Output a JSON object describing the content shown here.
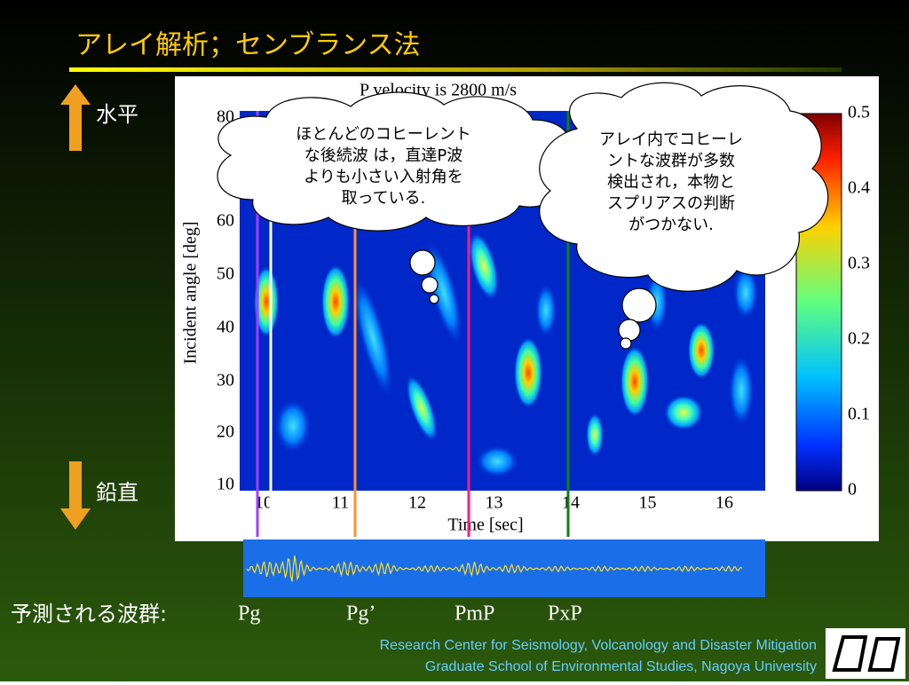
{
  "title": "アレイ解析；センブランス法",
  "labels": {
    "horizontal": "水平",
    "vertical": "鉛直"
  },
  "plot": {
    "title": "P velocity is 2800 m/s",
    "y_label": "Incident angle [deg]",
    "x_label": "Time [sec]",
    "y_ticks": [
      "80",
      "60",
      "50",
      "40",
      "30",
      "20",
      "10"
    ],
    "x_ticks": [
      "10",
      "11",
      "12",
      "13",
      "14",
      "15",
      "16"
    ],
    "colorbar_ticks": [
      "0.5",
      "0.4",
      "0.3",
      "0.2",
      "0.1",
      "0"
    ]
  },
  "callouts": [
    [
      "ほとんどのコヒーレント",
      "な後続波 は，直達P波",
      "よりも小さい入射角を",
      "取っている."
    ],
    [
      "アレイ内でコヒーレ",
      "ントな波群が多数",
      "検出され，本物と",
      "スプリアスの判断",
      "がつかない."
    ]
  ],
  "phases": {
    "label": "予測される波群:",
    "names": [
      "Pg",
      "Pg’",
      "PmP",
      "PxP"
    ]
  },
  "footer": [
    "Research Center for Seismology, Volcanology and Disaster Mitigation",
    "Graduate School of Environmental Studies, Nagoya University"
  ]
}
